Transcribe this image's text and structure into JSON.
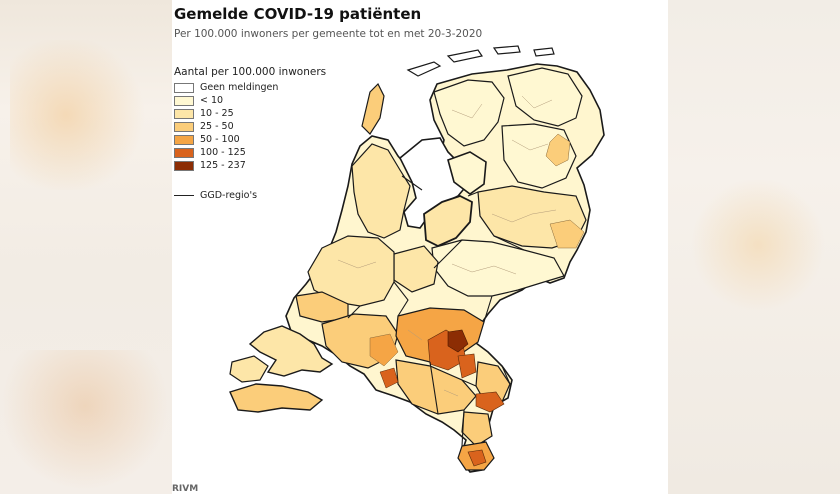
{
  "title": "Gemelde COVID-19 patiënten",
  "subtitle": "Per 100.000 inwoners per gemeente tot en met 20-3-2020",
  "legend": {
    "title": "Aantal per 100.000 inwoners",
    "items": [
      {
        "label": "Geen meldingen",
        "color": "#ffffff"
      },
      {
        "label": "< 10",
        "color": "#fff8d2"
      },
      {
        "label": "10 - 25",
        "color": "#fde6a8"
      },
      {
        "label": "25 - 50",
        "color": "#fbcd7a"
      },
      {
        "label": "50 - 100",
        "color": "#f5a545"
      },
      {
        "label": "100 - 125",
        "color": "#d9631d"
      },
      {
        "label": "125 - 237",
        "color": "#8c2d04"
      }
    ],
    "ggd_label": "GGD-regio's"
  },
  "source": "RIVM"
}
